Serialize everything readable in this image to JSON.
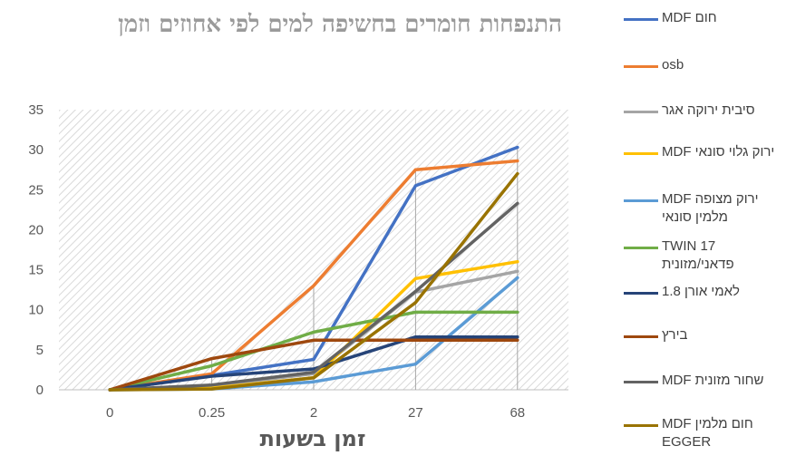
{
  "chart_data": {
    "type": "line",
    "title": "התנפחות חומרים בחשיפה למים לפי אחוזים וזמן",
    "xlabel": "זמן בשעות",
    "ylabel": "",
    "categories": [
      "0",
      "0.25",
      "2",
      "27",
      "68"
    ],
    "ylim": [
      0,
      35
    ],
    "yticks": [
      0,
      5,
      10,
      15,
      20,
      25,
      30,
      35
    ],
    "grid": "hatched plot area with vertical drop lines",
    "legend_position": "right",
    "series": [
      {
        "name": "MDF חום",
        "color": "#4472C4",
        "values": [
          0,
          1.8,
          3.8,
          25.5,
          30.3
        ]
      },
      {
        "name": "osb",
        "color": "#ED7D31",
        "values": [
          0,
          2.0,
          13.0,
          27.5,
          28.6
        ]
      },
      {
        "name": "סיבית ירוקה אגר",
        "color": "#A5A5A5",
        "values": [
          0,
          0.5,
          2.0,
          12.2,
          14.8
        ]
      },
      {
        "name": "MDF ירוק גלוי סונאי",
        "color": "#FFC000",
        "values": [
          0,
          0.2,
          1.5,
          13.9,
          16.0
        ]
      },
      {
        "name": "MDF  ירוק מצופה מלמין סונאי",
        "color": "#5B9BD5",
        "values": [
          0,
          0.1,
          1.0,
          3.2,
          14.0
        ]
      },
      {
        "name": "TWIN 17 פדאני/מזונית",
        "color": "#70AD47",
        "values": [
          0,
          3.0,
          7.2,
          9.7,
          9.7
        ]
      },
      {
        "name": "לאמי אורן 1.8",
        "color": "#264478",
        "values": [
          0,
          1.7,
          2.6,
          6.6,
          6.6
        ]
      },
      {
        "name": "בירץ",
        "color": "#9E480E",
        "values": [
          0,
          3.9,
          6.2,
          6.2,
          6.2
        ]
      },
      {
        "name": "MDF שחור מזונית",
        "color": "#636363",
        "values": [
          0,
          0.6,
          2.2,
          12.3,
          23.3
        ]
      },
      {
        "name": "MDF  חום מלמין EGGER",
        "color": "#997300",
        "values": [
          0,
          0.1,
          1.5,
          10.9,
          27.0
        ]
      }
    ]
  }
}
